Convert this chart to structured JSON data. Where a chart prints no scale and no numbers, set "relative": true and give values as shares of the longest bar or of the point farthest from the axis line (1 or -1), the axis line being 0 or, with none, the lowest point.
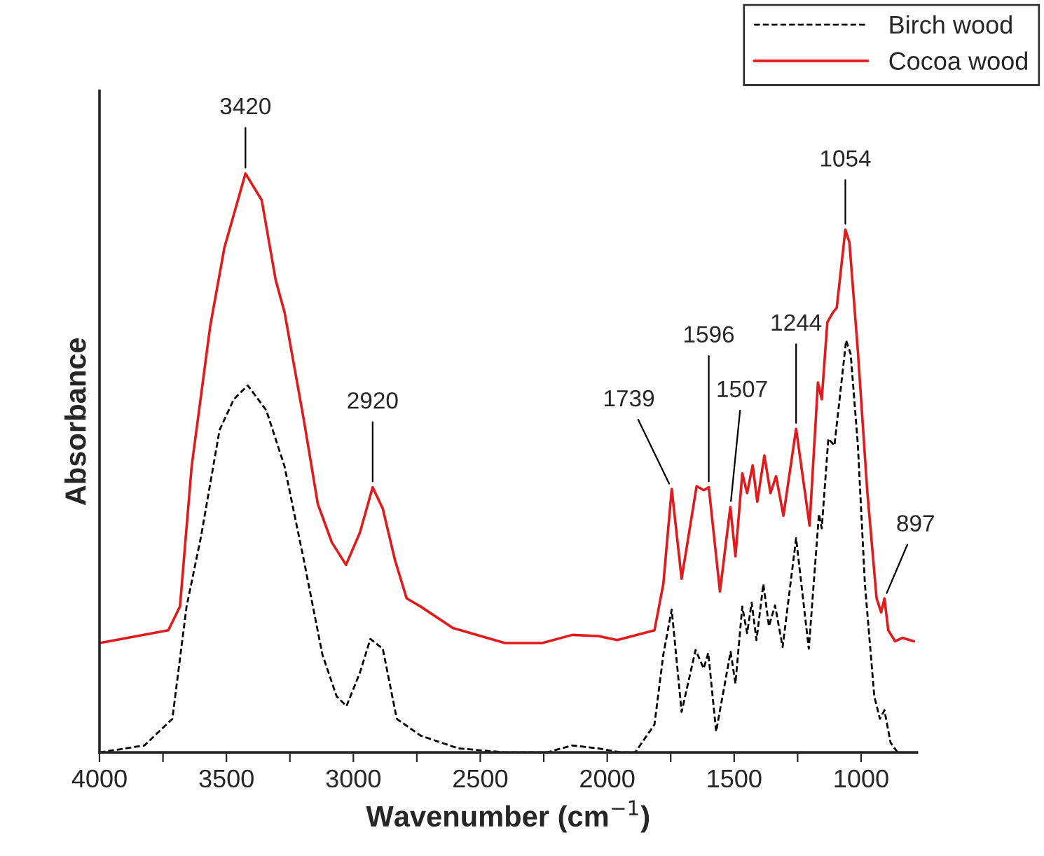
{
  "chart_data": {
    "type": "line",
    "relative": true,
    "xlabel": "Wavenumber (cm$^{−1}$)",
    "ylabel": "Absorbance",
    "xlim": [
      4000,
      780
    ],
    "xticks": [
      4000,
      {
        "value": 3750,
        "label": null
      },
      3500,
      {
        "value": 3250,
        "label": null
      },
      3000,
      {
        "value": 2750,
        "label": null
      },
      2500,
      {
        "value": 2250,
        "label": null
      },
      2000,
      {
        "value": 1750,
        "label": null
      },
      1500,
      {
        "value": 1250,
        "label": null
      },
      1000
    ],
    "legend": "top right",
    "grid": false,
    "series": [
      {
        "name": "Birch wood",
        "color": "#000000",
        "line_style": "dashed",
        "x": [
          4000,
          3823,
          3713,
          3657,
          3600,
          3527,
          3471,
          3416,
          3343,
          3271,
          3195,
          3122,
          3066,
          3027,
          2974,
          2933,
          2884,
          2829,
          2735,
          2587,
          2403,
          2238,
          2138,
          2035,
          1945,
          1890,
          1814,
          1779,
          1746,
          1707,
          1652,
          1620,
          1602,
          1571,
          1514,
          1495,
          1468,
          1449,
          1431,
          1412,
          1385,
          1363,
          1339,
          1309,
          1256,
          1206,
          1166,
          1155,
          1129,
          1105,
          1059,
          1041,
          1013,
          985,
          948,
          926,
          908,
          884,
          856
        ],
        "values": [
          0,
          0.012,
          0.058,
          0.252,
          0.373,
          0.557,
          0.61,
          0.634,
          0.591,
          0.494,
          0.332,
          0.169,
          0.097,
          0.08,
          0.138,
          0.196,
          0.179,
          0.058,
          0.029,
          0.007,
          0,
          0,
          0.012,
          0.007,
          0,
          0,
          0.048,
          0.169,
          0.247,
          0.07,
          0.177,
          0.145,
          0.172,
          0.036,
          0.174,
          0.119,
          0.252,
          0.206,
          0.259,
          0.194,
          0.291,
          0.218,
          0.254,
          0.182,
          0.37,
          0.179,
          0.412,
          0.387,
          0.542,
          0.53,
          0.712,
          0.688,
          0.533,
          0.291,
          0.097,
          0.058,
          0.073,
          0.017,
          0
        ]
      },
      {
        "name": "Cocoa wood",
        "color": "#e31a1c",
        "line_style": "solid",
        "x": [
          4000,
          3729,
          3683,
          3637,
          3564,
          3508,
          3425,
          3361,
          3306,
          3271,
          3195,
          3140,
          3085,
          3029,
          2974,
          2924,
          2884,
          2836,
          2790,
          2735,
          2608,
          2403,
          2256,
          2138,
          2035,
          1961,
          1814,
          1779,
          1746,
          1707,
          1648,
          1620,
          1600,
          1556,
          1515,
          1495,
          1468,
          1449,
          1427,
          1409,
          1381,
          1357,
          1335,
          1306,
          1256,
          1203,
          1170,
          1155,
          1133,
          1111,
          1096,
          1062,
          1046,
          1013,
          976,
          939,
          921,
          908,
          893,
          866,
          838,
          792
        ],
        "values": [
          0.189,
          0.211,
          0.252,
          0.494,
          0.736,
          0.872,
          1.0,
          0.954,
          0.816,
          0.76,
          0.574,
          0.429,
          0.363,
          0.324,
          0.38,
          0.458,
          0.421,
          0.332,
          0.266,
          0.252,
          0.215,
          0.189,
          0.189,
          0.203,
          0.201,
          0.194,
          0.211,
          0.291,
          0.455,
          0.3,
          0.46,
          0.453,
          0.458,
          0.278,
          0.424,
          0.339,
          0.482,
          0.448,
          0.496,
          0.433,
          0.513,
          0.448,
          0.477,
          0.409,
          0.559,
          0.392,
          0.639,
          0.61,
          0.743,
          0.76,
          0.768,
          0.903,
          0.881,
          0.695,
          0.453,
          0.266,
          0.242,
          0.266,
          0.211,
          0.192,
          0.198,
          0.192
        ]
      }
    ],
    "annotations": [
      {
        "text": "3420",
        "x": 3425,
        "y": 1.0
      },
      {
        "text": "2920",
        "x": 2924,
        "y": 0.458
      },
      {
        "text": "1739",
        "x": 1746,
        "y": 0.455
      },
      {
        "text": "1596",
        "x": 1600,
        "y": 0.458
      },
      {
        "text": "1507",
        "x": 1515,
        "y": 0.424
      },
      {
        "text": "1244",
        "x": 1256,
        "y": 0.559
      },
      {
        "text": "1054",
        "x": 1062,
        "y": 0.903
      },
      {
        "text": "897",
        "x": 908,
        "y": 0.266
      }
    ]
  }
}
